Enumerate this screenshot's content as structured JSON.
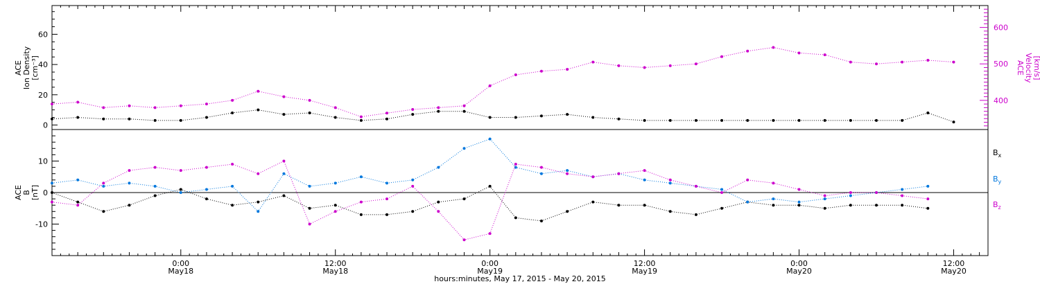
{
  "chart_data": [
    {
      "type": "scatter",
      "panel": "top",
      "ylabel_lines": [
        "ACE",
        "Ion Density",
        "[cm⁻³]"
      ],
      "ylim": [
        -3,
        79
      ],
      "yticks": [
        0,
        20,
        40,
        60
      ],
      "right_axis": {
        "label_lines": [
          "ACE",
          "Velocity",
          "[km/s]"
        ],
        "ylim": [
          320,
          660
        ],
        "yticks": [
          400,
          500,
          600
        ],
        "color": "#cc00cc"
      },
      "series": [
        {
          "name": "",
          "axis": "left",
          "color": "#000000",
          "x": [
            0,
            3,
            6,
            9,
            12,
            15,
            18,
            21,
            24,
            27,
            30,
            33,
            36,
            39,
            42,
            45,
            48,
            51,
            54,
            57,
            60,
            63,
            66,
            69,
            72,
            75,
            78,
            81,
            84,
            87,
            90,
            93,
            96,
            99,
            102,
            105
          ],
          "y": [
            4,
            5,
            4,
            4,
            3,
            3,
            5,
            8,
            10,
            7,
            8,
            5,
            3,
            4,
            7,
            9,
            9,
            5,
            5,
            6,
            7,
            5,
            4,
            3,
            3,
            3,
            3,
            3,
            3,
            3,
            3,
            3,
            3,
            3,
            8,
            2
          ]
        },
        {
          "name": "",
          "axis": "right",
          "color": "#cc00cc",
          "x": [
            0,
            3,
            6,
            9,
            12,
            15,
            18,
            21,
            24,
            27,
            30,
            33,
            36,
            39,
            42,
            45,
            48,
            51,
            54,
            57,
            60,
            63,
            66,
            69,
            72,
            75,
            78,
            81,
            84,
            87,
            90,
            93,
            96,
            99,
            102,
            105
          ],
          "y": [
            390,
            395,
            380,
            385,
            380,
            385,
            390,
            400,
            425,
            410,
            400,
            380,
            355,
            365,
            375,
            380,
            385,
            440,
            470,
            480,
            485,
            505,
            495,
            490,
            495,
            500,
            520,
            535,
            545,
            530,
            525,
            505,
            500,
            505,
            510,
            505
          ]
        }
      ]
    },
    {
      "type": "scatter",
      "panel": "bottom",
      "ylabel_lines": [
        "ACE",
        "B",
        "[nT]"
      ],
      "ylim": [
        -20,
        20
      ],
      "yticks": [
        -10,
        0,
        10
      ],
      "zero_line": true,
      "xlabel": "hours:minutes, May 17, 2015 - May 20, 2015",
      "xlim": [
        0,
        109
      ],
      "xticks": [
        {
          "x": 15,
          "l1": "0:00",
          "l2": "May18"
        },
        {
          "x": 33,
          "l1": "12:00",
          "l2": "May18"
        },
        {
          "x": 51,
          "l1": "0:00",
          "l2": "May19"
        },
        {
          "x": 69,
          "l1": "12:00",
          "l2": "May19"
        },
        {
          "x": 87,
          "l1": "0:00",
          "l2": "May20"
        },
        {
          "x": 105,
          "l1": "12:00",
          "l2": "May20"
        }
      ],
      "series": [
        {
          "name": "B",
          "sub": "x",
          "color": "#000000",
          "x": [
            0,
            3,
            6,
            9,
            12,
            15,
            18,
            21,
            24,
            27,
            30,
            33,
            36,
            39,
            42,
            45,
            48,
            51,
            54,
            57,
            60,
            63,
            66,
            69,
            72,
            75,
            78,
            81,
            84,
            87,
            90,
            93,
            96,
            99,
            102
          ],
          "y": [
            0,
            -3,
            -6,
            -4,
            -1,
            1,
            -2,
            -4,
            -3,
            -1,
            -5,
            -4,
            -7,
            -7,
            -6,
            -3,
            -2,
            2,
            -8,
            -9,
            -6,
            -3,
            -4,
            -4,
            -6,
            -7,
            -5,
            -3,
            -4,
            -4,
            -5,
            -4,
            -4,
            -4,
            -5
          ]
        },
        {
          "name": "B",
          "sub": "y",
          "color": "#0077dd",
          "x": [
            0,
            3,
            6,
            9,
            12,
            15,
            18,
            21,
            24,
            27,
            30,
            33,
            36,
            39,
            42,
            45,
            48,
            51,
            54,
            57,
            60,
            63,
            66,
            69,
            72,
            75,
            78,
            81,
            84,
            87,
            90,
            93,
            96,
            99,
            102
          ],
          "y": [
            3,
            4,
            2,
            3,
            2,
            0,
            1,
            2,
            -6,
            6,
            2,
            3,
            5,
            3,
            4,
            8,
            14,
            17,
            8,
            6,
            7,
            5,
            6,
            4,
            3,
            2,
            1,
            -3,
            -2,
            -3,
            -2,
            -1,
            0,
            1,
            2
          ]
        },
        {
          "name": "B",
          "sub": "z",
          "color": "#cc00cc",
          "x": [
            0,
            3,
            6,
            9,
            12,
            15,
            18,
            21,
            24,
            27,
            30,
            33,
            36,
            39,
            42,
            45,
            48,
            51,
            54,
            57,
            60,
            63,
            66,
            69,
            72,
            75,
            78,
            81,
            84,
            87,
            90,
            93,
            96,
            99,
            102
          ],
          "y": [
            -3,
            -4,
            3,
            7,
            8,
            7,
            8,
            9,
            6,
            10,
            -10,
            -6,
            -3,
            -2,
            2,
            -6,
            -15,
            -13,
            9,
            8,
            6,
            5,
            6,
            7,
            4,
            2,
            0,
            4,
            3,
            1,
            -1,
            0,
            0,
            -1,
            -2
          ]
        }
      ]
    }
  ]
}
